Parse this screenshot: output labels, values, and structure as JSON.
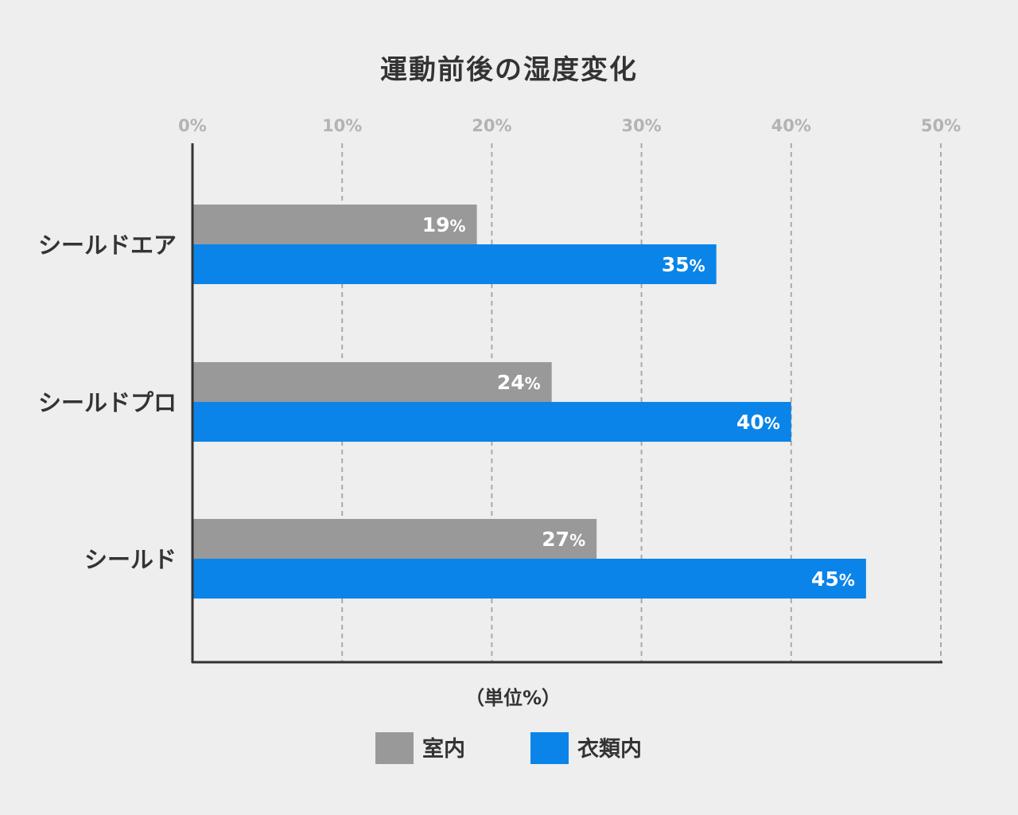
{
  "chart_data": {
    "type": "bar",
    "orientation": "horizontal",
    "title": "運動前後の湿度変化",
    "unit_note": "（単位%）",
    "categories": [
      "シールドエア",
      "シールドプロ",
      "シールド"
    ],
    "series": [
      {
        "name": "室内",
        "values": [
          19,
          24,
          27
        ],
        "color": "#999999"
      },
      {
        "name": "衣類内",
        "values": [
          35,
          40,
          45
        ],
        "color": "#0a84e8"
      }
    ],
    "value_suffix": "%",
    "xlim": [
      0,
      50
    ],
    "xticks": [
      "0%",
      "10%",
      "20%",
      "30%",
      "40%",
      "50%"
    ],
    "grid": true,
    "legend_position": "bottom",
    "colors": {
      "background": "#eeeeee",
      "axis": "#333333",
      "grid": "#aaaaaa",
      "tick_text": "#b3b3b3",
      "text": "#333333"
    }
  }
}
